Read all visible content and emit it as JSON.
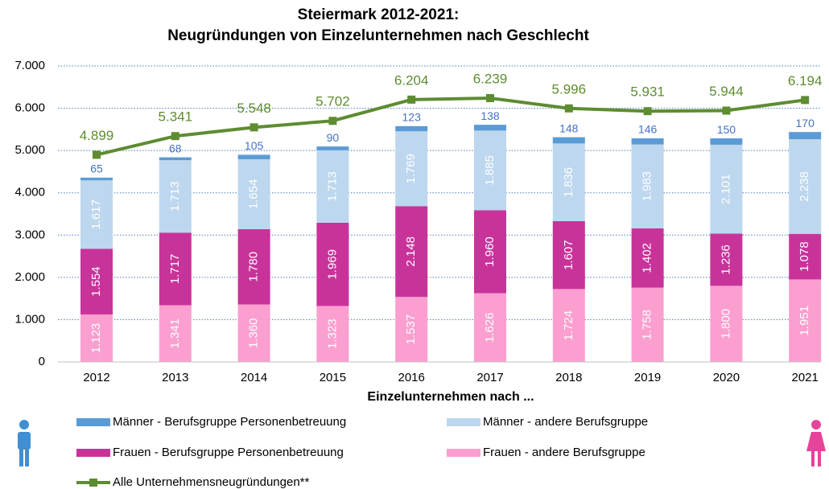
{
  "chart_data": {
    "type": "bar",
    "title": "Steiermark 2012-2021:",
    "subtitle": "Neugründungen von Einzelunternehmen nach Geschlecht",
    "x_label": "Einzelunternehmen nach ...",
    "categories": [
      "2012",
      "2013",
      "2014",
      "2015",
      "2016",
      "2017",
      "2018",
      "2019",
      "2020",
      "2021"
    ],
    "ylim": [
      0,
      7000
    ],
    "yticks": [
      0,
      {
        "value": 1000,
        "label": "1.000"
      },
      {
        "value": 2000,
        "label": "2.000"
      },
      {
        "value": 3000,
        "label": "3.000"
      },
      {
        "value": 4000,
        "label": "4.000"
      },
      {
        "value": 5000,
        "label": "5.000"
      },
      {
        "value": 6000,
        "label": "6.000"
      },
      {
        "value": 7000,
        "label": "7.000"
      }
    ],
    "grid": true,
    "stacked": true,
    "series": [
      {
        "name": "Frauen - andere Berufsgruppe",
        "color": "#fb9fd0",
        "values": [
          1123,
          1341,
          1360,
          1323,
          1537,
          1626,
          1724,
          1758,
          1800,
          1951
        ],
        "value_labels": [
          "1.123",
          "1.341",
          "1.360",
          "1.323",
          "1.537",
          "1.626",
          "1.724",
          "1.758",
          "1.800",
          "1.951"
        ]
      },
      {
        "name": "Frauen - Berufsgruppe Personenbetreuung",
        "color": "#c8339a",
        "values": [
          1554,
          1717,
          1780,
          1969,
          2148,
          1960,
          1607,
          1402,
          1236,
          1078
        ],
        "value_labels": [
          "1.554",
          "1.717",
          "1.780",
          "1.969",
          "2.148",
          "1.960",
          "1.607",
          "1.402",
          "1.236",
          "1.078"
        ]
      },
      {
        "name": "Männer - andere Berufsgruppe",
        "color": "#bdd7ee",
        "values": [
          1617,
          1713,
          1654,
          1713,
          1769,
          1885,
          1836,
          1983,
          2101,
          2238
        ],
        "value_labels": [
          "1.617",
          "1.713",
          "1.654",
          "1.713",
          "1.769",
          "1.885",
          "1.836",
          "1.983",
          "2.101",
          "2.238"
        ]
      },
      {
        "name": "Männer - Berufsgruppe Personenbetreuung",
        "color": "#5b9bd5",
        "values": [
          65,
          68,
          105,
          90,
          123,
          138,
          148,
          146,
          150,
          170
        ]
      },
      {
        "name": "Alle Unternehmensneugründungen**",
        "color": "#5e8c31",
        "type": "line",
        "values": [
          4899,
          5341,
          5548,
          5702,
          6204,
          6239,
          5996,
          5931,
          5944,
          6194
        ],
        "value_labels": [
          "4.899",
          "5.341",
          "5.548",
          "5.702",
          "6.204",
          "6.239",
          "5.996",
          "5.931",
          "5.944",
          "6.194"
        ]
      }
    ]
  }
}
